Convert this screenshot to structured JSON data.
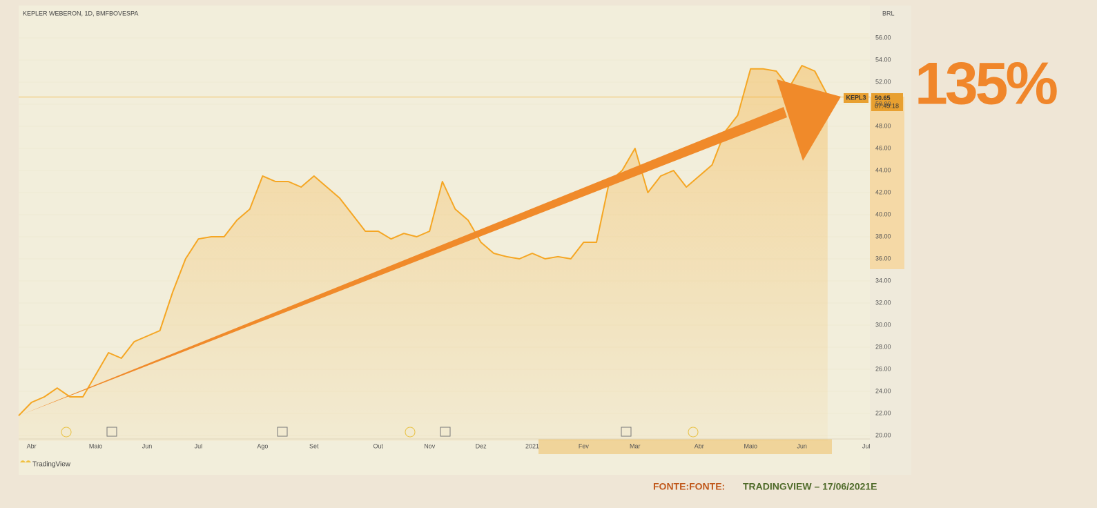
{
  "chart_data": {
    "type": "area",
    "title": "KEPLER WEBERON, 1D, BMFBOVESPA",
    "currency": "BRL",
    "headline": "135%",
    "symbol": "KEPL3",
    "last_price": {
      "value": 50.65,
      "label": "50.65"
    },
    "last_time": "07:49:18",
    "brand": "TradingView",
    "source_prefix": "FONTE:FONTE:",
    "source": "TRADINGVIEW – 17/06/2021E",
    "color": "#f5a623",
    "categories": [
      null,
      "Abr",
      null,
      null,
      null,
      null,
      "Maio",
      null,
      null,
      null,
      "Jun",
      null,
      null,
      null,
      "Jul",
      null,
      null,
      null,
      null,
      "Ago",
      null,
      null,
      null,
      "Set",
      null,
      null,
      null,
      null,
      "Out",
      null,
      null,
      null,
      "Nov",
      null,
      null,
      null,
      "Dez",
      null,
      null,
      null,
      "2021",
      null,
      null,
      null,
      "Fev",
      null,
      null,
      null,
      "Mar",
      null,
      null,
      null,
      null,
      "Abr",
      null,
      null,
      null,
      "Maio",
      null,
      null,
      null,
      "Jun",
      null,
      null,
      null,
      null,
      "Jul"
    ],
    "values": [
      21.8,
      23,
      23.5,
      24.3,
      23.5,
      23.5,
      25.5,
      27.5,
      27,
      28.5,
      29,
      29.5,
      33,
      36,
      37.8,
      38,
      38,
      39.5,
      40.5,
      43.5,
      43,
      43,
      42.5,
      43.5,
      42.5,
      41.5,
      40,
      38.5,
      38.5,
      37.8,
      38.3,
      38,
      38.5,
      43,
      40.5,
      39.5,
      37.5,
      36.5,
      36.2,
      36,
      36.5,
      36,
      36.2,
      36,
      37.5,
      37.5,
      43,
      44,
      46,
      42,
      43.5,
      44,
      42.5,
      43.5,
      44.5,
      47.5,
      49,
      53.2,
      53.2,
      53,
      51.5,
      53.5,
      53,
      50.8,
      null,
      null,
      null
    ],
    "ylim": [
      19.5,
      58
    ],
    "yticks": [
      {
        "value": 20,
        "label": "20.00"
      },
      {
        "value": 22,
        "label": "22.00"
      },
      {
        "value": 24,
        "label": "24.00"
      },
      {
        "value": 26,
        "label": "26.00"
      },
      {
        "value": 28,
        "label": "28.00"
      },
      {
        "value": 30,
        "label": "30.00"
      },
      {
        "value": 32,
        "label": "32.00"
      },
      {
        "value": 34,
        "label": "34.00"
      },
      {
        "value": 36,
        "label": "36.00"
      },
      {
        "value": 38,
        "label": "38.00"
      },
      {
        "value": 40,
        "label": "40.00"
      },
      {
        "value": 42,
        "label": "42.00"
      },
      {
        "value": 44,
        "label": "44.00"
      },
      {
        "value": 46,
        "label": "46.00"
      },
      {
        "value": 48,
        "label": "48.00"
      },
      {
        "value": 50,
        "label": "50.00"
      },
      {
        "value": 52,
        "label": "52.00"
      },
      {
        "value": 54,
        "label": "54.00"
      },
      {
        "value": 56,
        "label": "56.00"
      }
    ]
  }
}
